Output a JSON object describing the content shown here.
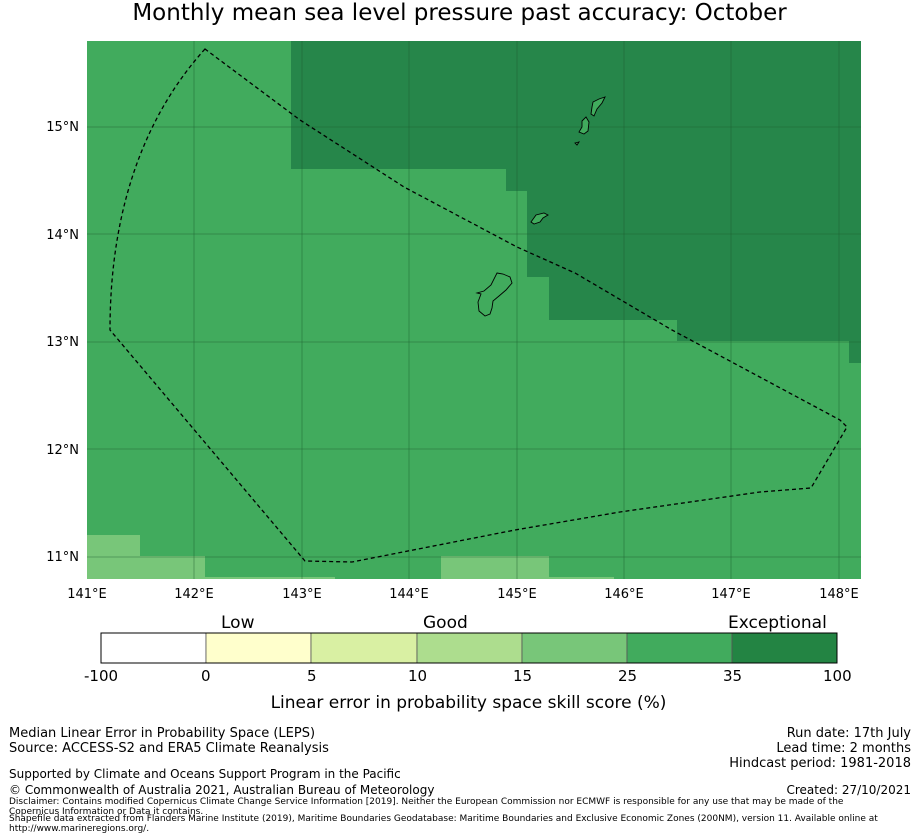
{
  "title": "Monthly mean sea level pressure past accuracy: October",
  "map": {
    "lon_ticks": [
      "141°E",
      "142°E",
      "143°E",
      "144°E",
      "145°E",
      "146°E",
      "147°E",
      "148°E"
    ],
    "lat_ticks": [
      "15°N",
      "14°N",
      "13°N",
      "12°N",
      "11°N"
    ],
    "colors": {
      "exceptional": "#26864a",
      "high": "#41ab5d",
      "good": "#78c679",
      "gridline": "#1d5c30"
    }
  },
  "colorbar": {
    "categories": [
      "Low",
      "Good",
      "Exceptional"
    ],
    "ticks": [
      "-100",
      "0",
      "5",
      "10",
      "15",
      "25",
      "35",
      "100"
    ],
    "colors": [
      "#ffffff",
      "#ffffcc",
      "#d9f0a3",
      "#addd8e",
      "#78c679",
      "#41ab5d",
      "#238443"
    ],
    "label": "Linear error in probability space skill score (%)"
  },
  "footer": {
    "left1": "Median Linear Error in Probability Space (LEPS)",
    "left2": "Source: ACCESS-S2 and ERA5 Climate Reanalysis",
    "support": "Supported by Climate and Oceans Support Program in the Pacific",
    "copyright": "© Commonwealth of Australia 2021, Australian Bureau of Meteorology",
    "disclaimer": "Disclaimer: Contains modified Copernicus Climate Change Service Information [2019]. Neither the European Commission nor ECMWF is responsible for any use that may be made of the Copernicus Information or Data it contains.",
    "shapefile": "Shapefile data extracted from Flanders Marine Institute (2019), Maritime Boundaries Geodatabase: Maritime Boundaries and Exclusive Economic Zones (200NM), version 11. Available online at http://www.marineregions.org/.",
    "run_date": "Run date: 17th July",
    "lead_time": "Lead time: 2 months",
    "hindcast": "Hindcast period: 1981-2018",
    "created": "Created: 27/10/2021"
  }
}
